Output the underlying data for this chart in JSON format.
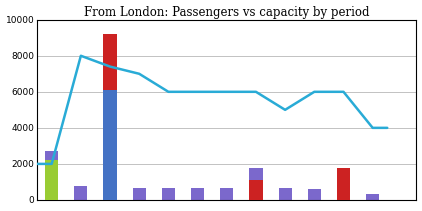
{
  "title": "From London: Passengers vs capacity by period",
  "xlim": [
    -0.5,
    12.5
  ],
  "ylim": [
    0,
    10000
  ],
  "yticks": [
    0,
    2000,
    4000,
    6000,
    8000,
    10000
  ],
  "bar_positions": [
    0,
    1,
    2,
    3,
    4,
    5,
    6,
    7,
    8,
    9,
    10,
    11
  ],
  "bar_purple": [
    2700,
    800,
    6100,
    650,
    650,
    650,
    650,
    1750,
    650,
    600,
    600,
    350
  ],
  "bar_green": [
    2200,
    0,
    0,
    0,
    0,
    0,
    0,
    0,
    0,
    0,
    0,
    0
  ],
  "bar_blue": [
    0,
    0,
    6100,
    0,
    0,
    0,
    0,
    0,
    0,
    0,
    0,
    0
  ],
  "bar_red": [
    0,
    0,
    3100,
    0,
    0,
    0,
    0,
    1100,
    0,
    0,
    1750,
    0
  ],
  "capacity_x": [
    -0.5,
    0,
    1,
    2,
    3,
    4,
    5,
    6,
    7,
    8,
    9,
    10,
    11,
    11.5
  ],
  "capacity_y": [
    2000,
    2000,
    8000,
    7400,
    7000,
    6000,
    6000,
    6000,
    6000,
    5000,
    6000,
    6000,
    4000,
    4000
  ],
  "bar_width": 0.45,
  "purple_color": "#7B68CC",
  "green_color": "#99CC33",
  "blue_color": "#4472C4",
  "red_color": "#CC2222",
  "line_color": "#29ABD6",
  "background_color": "#FFFFFF"
}
